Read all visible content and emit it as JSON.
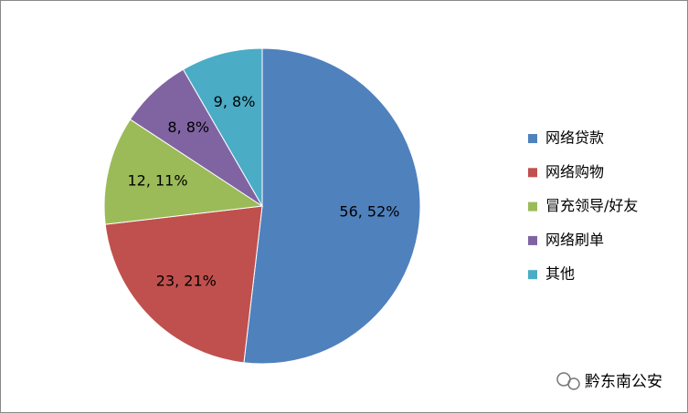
{
  "chart_data": {
    "type": "pie",
    "categories": [
      "网络贷款",
      "网络购物",
      "冒充领导/好友",
      "网络刷单",
      "其他"
    ],
    "values": [
      56,
      23,
      12,
      8,
      9
    ],
    "value_labels": [
      "56, 52%",
      "23, 21%",
      "12, 11%",
      "8, 8%",
      "9, 8%"
    ],
    "colors": [
      "#4f81bd",
      "#c0504d",
      "#9bbb59",
      "#8064a2",
      "#4bacc6"
    ],
    "legend": "right"
  },
  "watermark": "黔东南公安"
}
